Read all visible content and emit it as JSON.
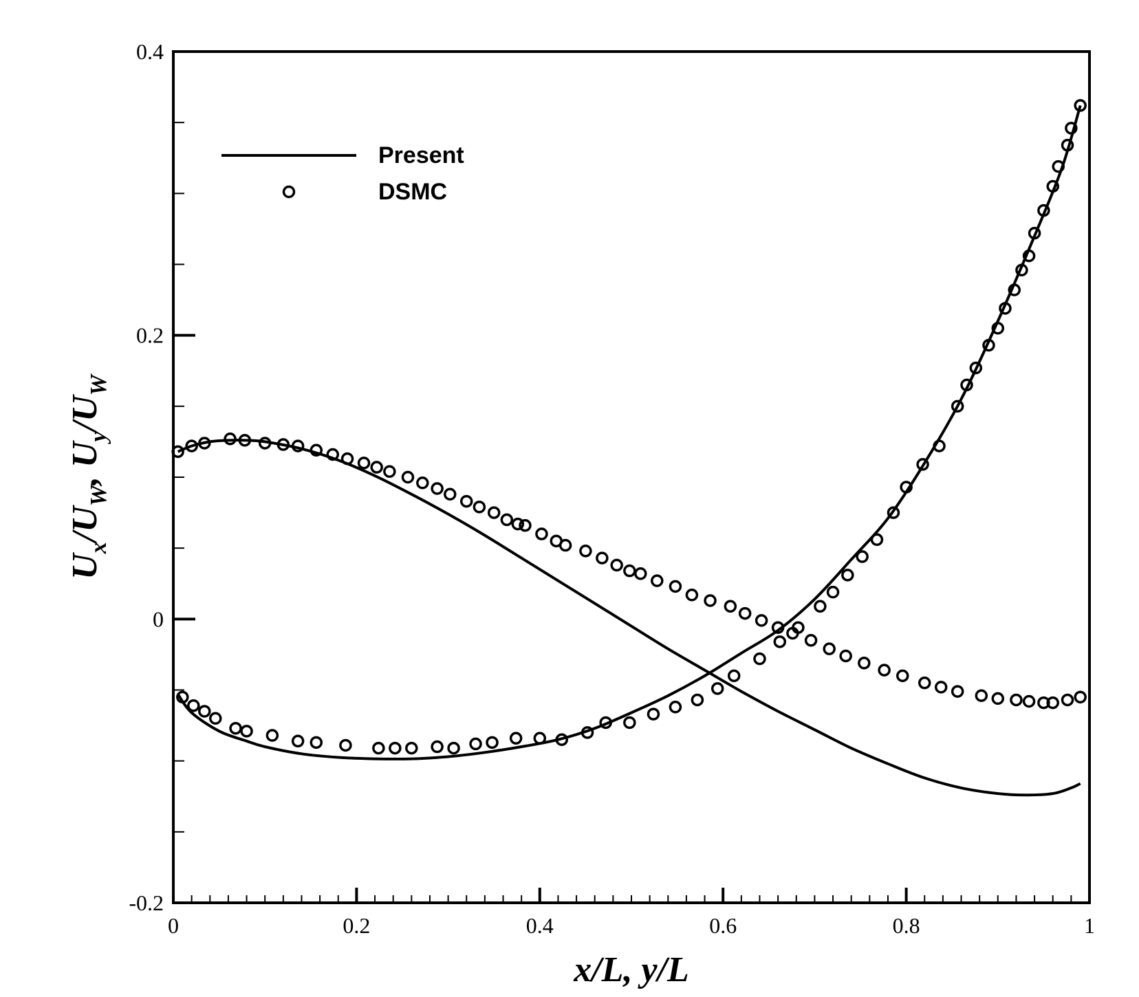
{
  "chart_data": {
    "type": "line",
    "title": "",
    "xlabel": "x/L, y/L",
    "ylabel": {
      "parts": [
        {
          "t": "U",
          "sub": "x"
        },
        {
          "t": "/U",
          "sub": "W"
        },
        {
          "t": ", U",
          "sub": "y"
        },
        {
          "t": "/U",
          "sub": "W"
        }
      ]
    },
    "xlim": [
      0,
      1
    ],
    "ylim": [
      -0.2,
      0.4
    ],
    "x_ticks": [
      0,
      0.2,
      0.4,
      0.6,
      0.8,
      1
    ],
    "x_tick_labels": [
      "0",
      "0.2",
      "0.4",
      "0.6",
      "0.8",
      "1"
    ],
    "y_ticks": [
      -0.2,
      0,
      0.2,
      0.4
    ],
    "y_tick_labels": [
      "-0.2",
      "0",
      "0.2",
      "0.4"
    ],
    "grid": false,
    "legend": {
      "placement": "top-left",
      "entries": [
        {
          "label": "Present",
          "marker": "line"
        },
        {
          "label": "DSMC",
          "marker": "circle"
        }
      ]
    },
    "series": [
      {
        "label": "Present",
        "style": "line",
        "x": [
          0.005,
          0.02,
          0.05,
          0.08,
          0.1,
          0.14,
          0.18,
          0.22,
          0.26,
          0.3,
          0.34,
          0.38,
          0.42,
          0.46,
          0.5,
          0.54,
          0.58,
          0.62,
          0.66,
          0.7,
          0.74,
          0.78,
          0.82,
          0.86,
          0.9,
          0.94,
          0.97,
          0.99
        ],
        "y": [
          -0.053,
          -0.066,
          -0.079,
          -0.086,
          -0.09,
          -0.095,
          -0.0975,
          -0.0985,
          -0.0985,
          -0.097,
          -0.094,
          -0.09,
          -0.085,
          -0.077,
          -0.066,
          -0.054,
          -0.04,
          -0.024,
          -0.008,
          0.014,
          0.042,
          0.071,
          0.11,
          0.155,
          0.21,
          0.27,
          0.318,
          0.362
        ]
      },
      {
        "label": "Present",
        "style": "line",
        "x": [
          0.005,
          0.02,
          0.04,
          0.06,
          0.08,
          0.1,
          0.14,
          0.18,
          0.22,
          0.26,
          0.3,
          0.34,
          0.38,
          0.42,
          0.46,
          0.5,
          0.54,
          0.58,
          0.62,
          0.66,
          0.7,
          0.74,
          0.78,
          0.82,
          0.86,
          0.9,
          0.93,
          0.96,
          0.98,
          0.99
        ],
        "y": [
          0.118,
          0.122,
          0.125,
          0.126,
          0.126,
          0.125,
          0.12,
          0.112,
          0.101,
          0.088,
          0.074,
          0.059,
          0.043,
          0.027,
          0.011,
          -0.005,
          -0.021,
          -0.036,
          -0.051,
          -0.065,
          -0.078,
          -0.091,
          -0.102,
          -0.112,
          -0.119,
          -0.123,
          -0.124,
          -0.123,
          -0.119,
          -0.116
        ]
      },
      {
        "label": "DSMC",
        "style": "circle",
        "x": [
          0.01,
          0.022,
          0.034,
          0.046,
          0.068,
          0.08,
          0.108,
          0.136,
          0.156,
          0.188,
          0.224,
          0.242,
          0.26,
          0.288,
          0.306,
          0.33,
          0.348,
          0.374,
          0.4,
          0.424,
          0.452,
          0.472,
          0.498,
          0.524,
          0.548,
          0.572,
          0.594,
          0.612,
          0.64,
          0.662,
          0.682,
          0.706,
          0.72,
          0.736,
          0.752,
          0.768,
          0.786,
          0.8,
          0.818,
          0.836,
          0.856,
          0.866,
          0.876,
          0.89,
          0.9,
          0.908,
          0.918,
          0.926,
          0.934,
          0.94,
          0.95,
          0.96,
          0.966,
          0.976,
          0.98,
          0.99
        ],
        "y": [
          -0.055,
          -0.061,
          -0.065,
          -0.07,
          -0.077,
          -0.079,
          -0.082,
          -0.086,
          -0.087,
          -0.089,
          -0.091,
          -0.091,
          -0.091,
          -0.09,
          -0.091,
          -0.088,
          -0.087,
          -0.084,
          -0.084,
          -0.085,
          -0.08,
          -0.073,
          -0.073,
          -0.067,
          -0.062,
          -0.057,
          -0.049,
          -0.04,
          -0.028,
          -0.016,
          -0.006,
          0.009,
          0.019,
          0.031,
          0.044,
          0.056,
          0.075,
          0.093,
          0.109,
          0.122,
          0.15,
          0.165,
          0.177,
          0.193,
          0.205,
          0.219,
          0.232,
          0.246,
          0.256,
          0.272,
          0.288,
          0.305,
          0.319,
          0.334,
          0.346,
          0.362
        ]
      },
      {
        "label": "DSMC",
        "style": "circle",
        "x": [
          0.005,
          0.02,
          0.034,
          0.062,
          0.078,
          0.1,
          0.12,
          0.136,
          0.156,
          0.174,
          0.19,
          0.208,
          0.222,
          0.236,
          0.256,
          0.272,
          0.288,
          0.302,
          0.32,
          0.334,
          0.35,
          0.364,
          0.376,
          0.384,
          0.402,
          0.418,
          0.428,
          0.45,
          0.468,
          0.484,
          0.498,
          0.51,
          0.528,
          0.548,
          0.566,
          0.586,
          0.608,
          0.624,
          0.642,
          0.66,
          0.676,
          0.696,
          0.716,
          0.734,
          0.754,
          0.776,
          0.796,
          0.82,
          0.838,
          0.856,
          0.882,
          0.9,
          0.92,
          0.934,
          0.95,
          0.96,
          0.976,
          0.99
        ],
        "y": [
          0.118,
          0.122,
          0.124,
          0.127,
          0.126,
          0.124,
          0.123,
          0.122,
          0.119,
          0.116,
          0.113,
          0.11,
          0.107,
          0.104,
          0.1,
          0.096,
          0.092,
          0.088,
          0.083,
          0.079,
          0.075,
          0.07,
          0.067,
          0.066,
          0.06,
          0.055,
          0.052,
          0.048,
          0.043,
          0.038,
          0.034,
          0.032,
          0.027,
          0.023,
          0.017,
          0.013,
          0.009,
          0.004,
          -0.001,
          -0.006,
          -0.01,
          -0.015,
          -0.021,
          -0.026,
          -0.031,
          -0.036,
          -0.04,
          -0.045,
          -0.048,
          -0.051,
          -0.054,
          -0.056,
          -0.057,
          -0.058,
          -0.059,
          -0.059,
          -0.057,
          -0.055
        ]
      }
    ]
  }
}
